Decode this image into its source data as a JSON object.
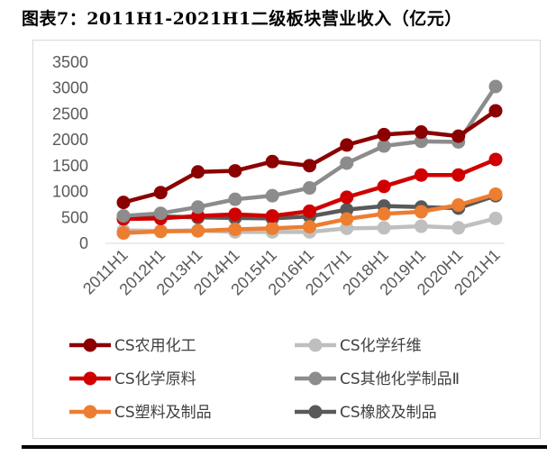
{
  "title": "图表7：2011H1-2021H1二级板块营业收入（亿元）",
  "chart_data": {
    "type": "line",
    "title": "图表7：2011H1-2021H1二级板块营业收入（亿元）",
    "categories": [
      "2011H1",
      "2012H1",
      "2013H1",
      "2014H1",
      "2015H1",
      "2016H1",
      "2017H1",
      "2018H1",
      "2019H1",
      "2020H1",
      "2021H1"
    ],
    "ylim": [
      0,
      3500
    ],
    "yticks": [
      "0",
      "500",
      "1000",
      "1500",
      "2000",
      "2500",
      "3000",
      "3500"
    ],
    "grid": false,
    "legend": "bottom",
    "series": [
      {
        "name": "CS农用化工",
        "color": "#8B0000",
        "values": [
          790,
          980,
          1380,
          1400,
          1580,
          1500,
          1900,
          2100,
          2150,
          2070,
          2560
        ]
      },
      {
        "name": "CS化学纤维",
        "color": "#BFBFBF",
        "values": [
          250,
          240,
          250,
          220,
          220,
          220,
          290,
          300,
          330,
          300,
          480
        ]
      },
      {
        "name": "CS化学原料",
        "color": "#D00000",
        "values": [
          470,
          480,
          530,
          560,
          530,
          620,
          890,
          1100,
          1320,
          1320,
          1620
        ]
      },
      {
        "name": "CS其他化学制品Ⅱ",
        "color": "#8C8C8C",
        "values": [
          530,
          580,
          700,
          850,
          920,
          1070,
          1550,
          1880,
          1970,
          1960,
          3030
        ]
      },
      {
        "name": "CS塑料及制品",
        "color": "#ED7D31",
        "values": [
          200,
          230,
          240,
          270,
          290,
          320,
          470,
          570,
          610,
          740,
          950
        ]
      },
      {
        "name": "CS橡胶及制品",
        "color": "#595959",
        "values": [
          520,
          520,
          500,
          490,
          480,
          520,
          650,
          720,
          700,
          680,
          920
        ]
      }
    ]
  }
}
